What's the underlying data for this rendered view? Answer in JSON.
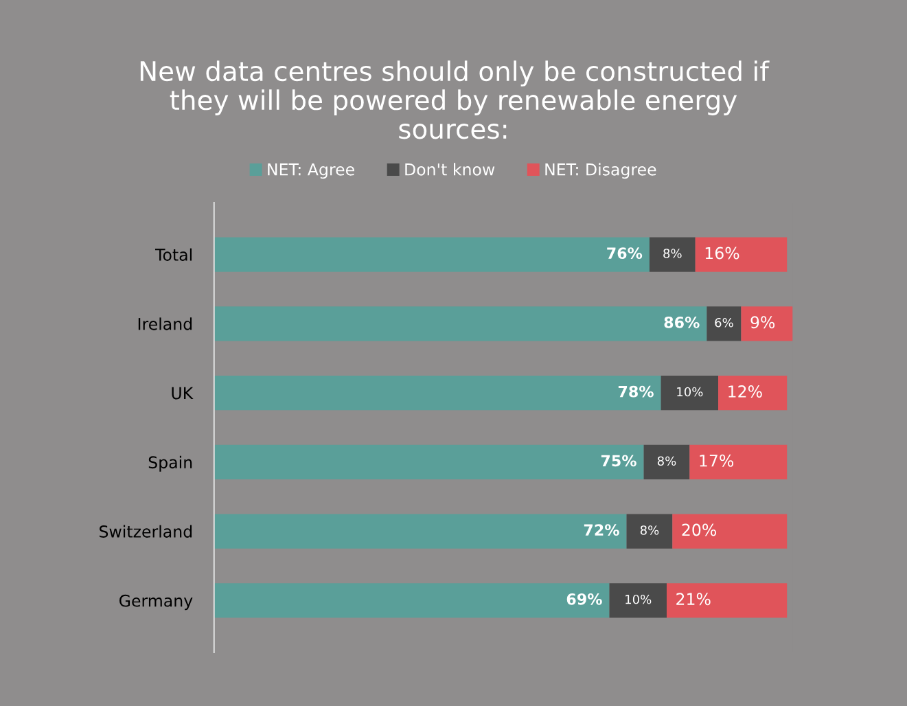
{
  "chart_data": {
    "type": "bar",
    "orientation": "horizontal",
    "stacked": true,
    "title": "New data centres should only be constructed if\nthey will be powered by renewable energy\nsources:",
    "categories": [
      "Total",
      "Ireland",
      "UK",
      "Spain",
      "Switzerland",
      "Germany"
    ],
    "xlim": [
      0,
      101
    ],
    "legend": "top",
    "tick_labels": "y",
    "grid": false,
    "series": [
      {
        "name": "NET: Agree",
        "color": "#5a9f99",
        "values": [
          76,
          86,
          78,
          75,
          72,
          69
        ],
        "value_labels": [
          "76%",
          "86%",
          "78%",
          "75%",
          "72%",
          "69%"
        ]
      },
      {
        "name": "Don't know",
        "color": "#4a4a4a",
        "values": [
          8,
          6,
          10,
          8,
          8,
          10
        ],
        "value_labels": [
          "8%",
          "6%",
          "10%",
          "8%",
          "8%",
          "10%"
        ]
      },
      {
        "name": "NET: Disagree",
        "color": "#e0545a",
        "values": [
          16,
          9,
          12,
          17,
          20,
          21
        ],
        "value_labels": [
          "16%",
          "9%",
          "12%",
          "17%",
          "20%",
          "21%"
        ]
      }
    ]
  }
}
